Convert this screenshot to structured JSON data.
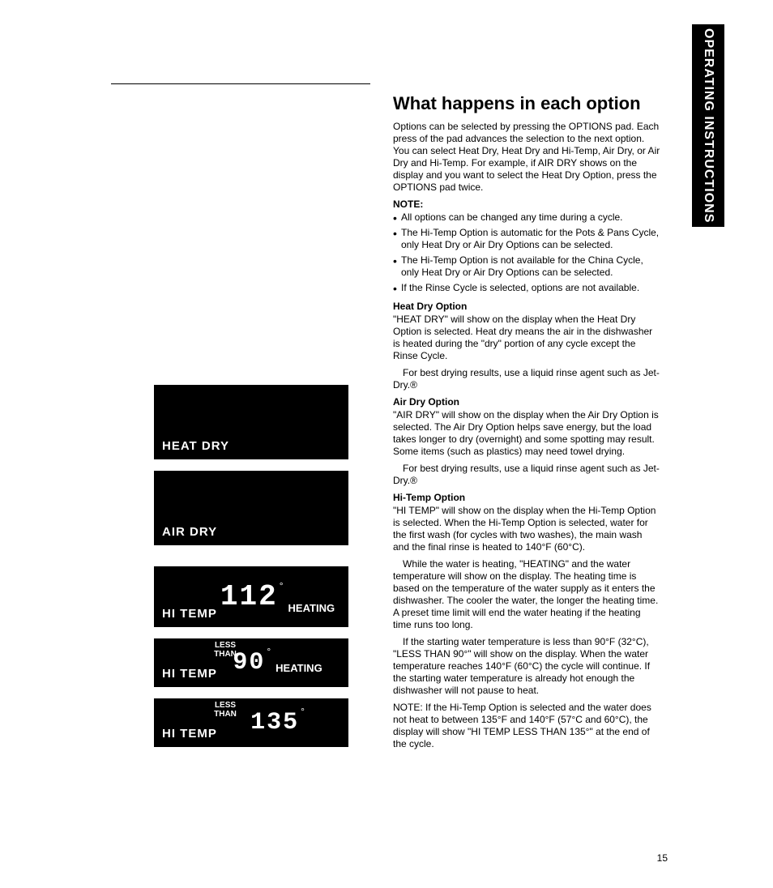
{
  "side_tab": "OPERATING INSTRUCTIONS",
  "page_number": "15",
  "title": "What happens in each option",
  "intro": "Options can be selected by pressing the OPTIONS pad. Each press of the pad advances the selection to the next option. You can select Heat Dry, Heat Dry and Hi-Temp, Air Dry, or Air Dry and Hi-Temp. For example, if AIR DRY shows on the display and you want to select the Heat Dry Option, press the OPTIONS pad twice.",
  "note_label": "NOTE:",
  "notes": [
    "All options can be changed any time during a cycle.",
    "The Hi-Temp Option is automatic for the Pots & Pans Cycle, only Heat Dry or Air Dry Options can be selected.",
    "The Hi-Temp Option is not available for the China Cycle, only Heat Dry or Air Dry Options can be selected.",
    "If the Rinse Cycle is selected, options are not available."
  ],
  "sections": {
    "heat_dry": {
      "heading": "Heat Dry Option",
      "p1": "\"HEAT DRY\" will show on the display when the Heat Dry Option is selected. Heat dry means the air in the dishwasher is heated during the \"dry\" portion of any cycle except the Rinse Cycle.",
      "p2": "For best drying results, use a liquid rinse agent such as Jet-Dry.®"
    },
    "air_dry": {
      "heading": "Air Dry Option",
      "p1": "\"AIR DRY\" will show on the display when the Air Dry Option is selected. The Air Dry Option helps save energy, but the load takes longer to dry (overnight) and some spotting may result. Some items (such as plastics) may need towel drying.",
      "p2": "For best drying results, use a liquid rinse agent such as Jet-Dry.®"
    },
    "hi_temp": {
      "heading": "Hi-Temp Option",
      "p1": "\"HI TEMP\" will show on the display when the Hi-Temp Option is selected. When the Hi-Temp Option is selected, water for the first wash (for cycles with two washes), the main wash and the final rinse is heated to 140°F (60°C).",
      "p2": "While the water is heating, \"HEATING\" and the water temperature will show on the display. The heating time is based on the temperature of the water supply as it enters the dishwasher. The cooler the water, the longer the heating time. A preset time limit will end the water heating if the heating time runs too long.",
      "p3": "If the starting water temperature is less than 90°F (32°C), \"LESS THAN 90°\" will show on the display. When the water temperature reaches 140°F (60°C) the cycle will continue. If the starting water temperature is already hot enough the dishwasher will not pause to heat.",
      "note": "NOTE: If the Hi-Temp Option is selected and the water does not heat to between 135°F and 140°F (57°C and 60°C), the display will show \"HI TEMP LESS THAN 135°\" at the end of the cycle."
    }
  },
  "displays": {
    "heat_dry_panel": {
      "label": "HEAT DRY"
    },
    "air_dry_panel": {
      "label": "AIR   DRY"
    },
    "hitemp_112": {
      "label": "HI TEMP",
      "temp": "112",
      "deg": "°",
      "status": "HEATING"
    },
    "hitemp_90": {
      "label": "HI TEMP",
      "less": "LESS",
      "than": "THAN",
      "temp": "90",
      "deg": "°",
      "status": "HEATING"
    },
    "hitemp_135": {
      "label": "HI TEMP",
      "less": "LESS",
      "than": "THAN",
      "temp": "135",
      "deg": "°"
    }
  },
  "colors": {
    "text": "#000000",
    "panel_bg": "#000000",
    "panel_fg": "#ffffff",
    "page_bg": "#ffffff"
  },
  "typography": {
    "title_fontsize": 22,
    "body_fontsize": 12,
    "panel_label_fontsize": 15,
    "segment_fontsize": 36
  }
}
